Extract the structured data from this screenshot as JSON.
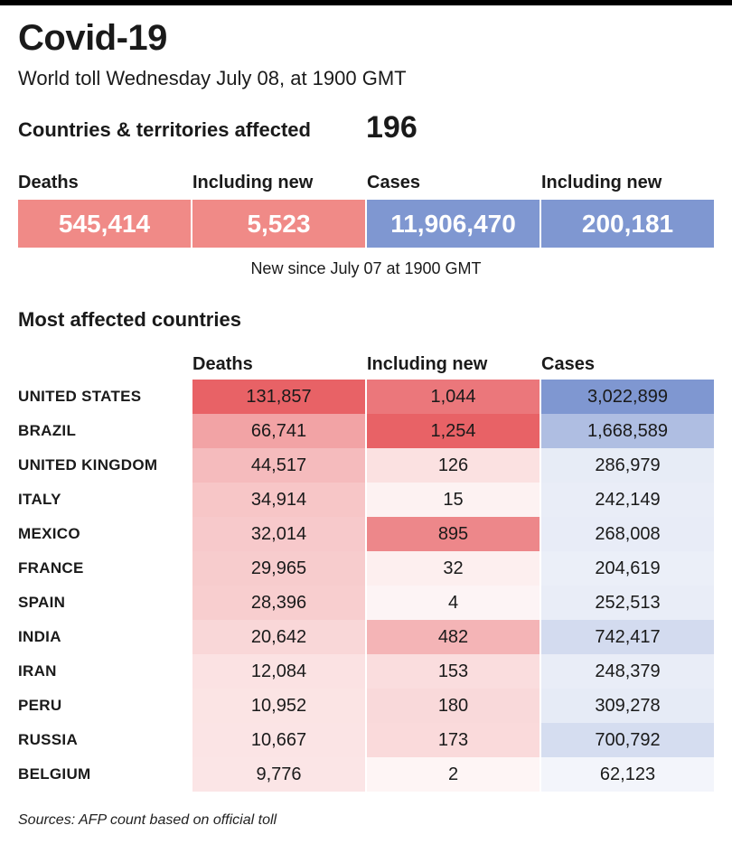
{
  "header": {
    "title": "Covid-19",
    "subtitle": "World toll Wednesday July 08, at 1900 GMT",
    "countries_label": "Countries & territories affected",
    "countries_value": "196"
  },
  "summary": {
    "deaths_label": "Deaths",
    "deaths_value": "545,414",
    "deaths_new_label": "Including new",
    "deaths_new_value": "5,523",
    "cases_label": "Cases",
    "cases_value": "11,906,470",
    "cases_new_label": "Including new",
    "cases_new_value": "200,181",
    "note": "New since  July 07 at 1900 GMT"
  },
  "colors": {
    "deaths_accent": "#f08a87",
    "cases_accent": "#7f97d1"
  },
  "source": "Sources: AFP count based on official toll",
  "chart_data": {
    "type": "table",
    "title": "Most affected countries",
    "columns": [
      "Deaths",
      "Including new",
      "Cases"
    ],
    "rows": [
      {
        "country": "UNITED STATES",
        "deaths": "131,857",
        "new": "1,044",
        "cases": "3,022,899"
      },
      {
        "country": "BRAZIL",
        "deaths": "66,741",
        "new": "1,254",
        "cases": "1,668,589"
      },
      {
        "country": "UNITED KINGDOM",
        "deaths": "44,517",
        "new": "126",
        "cases": "286,979"
      },
      {
        "country": "ITALY",
        "deaths": "34,914",
        "new": "15",
        "cases": "242,149"
      },
      {
        "country": "MEXICO",
        "deaths": "32,014",
        "new": "895",
        "cases": "268,008"
      },
      {
        "country": "FRANCE",
        "deaths": "29,965",
        "new": "32",
        "cases": "204,619"
      },
      {
        "country": "SPAIN",
        "deaths": "28,396",
        "new": "4",
        "cases": "252,513"
      },
      {
        "country": "INDIA",
        "deaths": "20,642",
        "new": "482",
        "cases": "742,417"
      },
      {
        "country": "IRAN",
        "deaths": "12,084",
        "new": "153",
        "cases": "248,379"
      },
      {
        "country": "PERU",
        "deaths": "10,952",
        "new": "180",
        "cases": "309,278"
      },
      {
        "country": "RUSSIA",
        "deaths": "10,667",
        "new": "173",
        "cases": "700,792"
      },
      {
        "country": "BELGIUM",
        "deaths": "9,776",
        "new": "2",
        "cases": "62,123"
      }
    ]
  }
}
